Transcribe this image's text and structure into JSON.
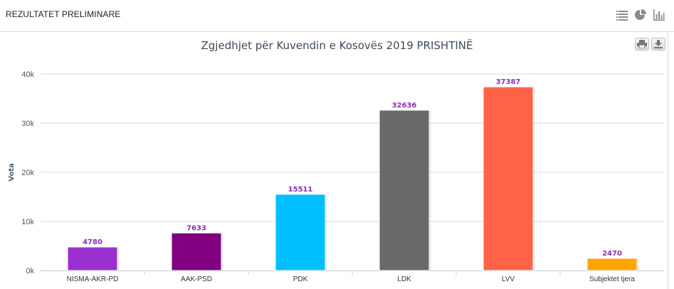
{
  "header": {
    "title": "REZULTATET PRELIMINARE",
    "icons": [
      "list-view-icon",
      "pie-chart-icon",
      "bar-chart-icon"
    ]
  },
  "chart_data": {
    "type": "bar",
    "title": "Zgjedhjet për Kuvendin e Kosovës 2019 PRISHTINË",
    "xlabel": "",
    "ylabel": "Vota",
    "ylim": [
      0,
      40000
    ],
    "yticks": [
      0,
      10000,
      20000,
      30000,
      40000
    ],
    "ytick_labels": [
      "0k",
      "10k",
      "20k",
      "30k",
      "40k"
    ],
    "grid": true,
    "legend": "none",
    "categories": [
      "NISMA-AKR-PD",
      "AAK-PSD",
      "PDK",
      "LDK",
      "LVV",
      "Subjektet tjera"
    ],
    "values": [
      4780,
      7633,
      15511,
      32636,
      37387,
      2470
    ],
    "colors": [
      "#9b30d0",
      "#800080",
      "#00bfff",
      "#696969",
      "#ff6347",
      "#ffa500"
    ],
    "data_label_color": "#8e2fb3"
  },
  "export": {
    "print_icon": "print-icon",
    "download_icon": "download-icon"
  }
}
